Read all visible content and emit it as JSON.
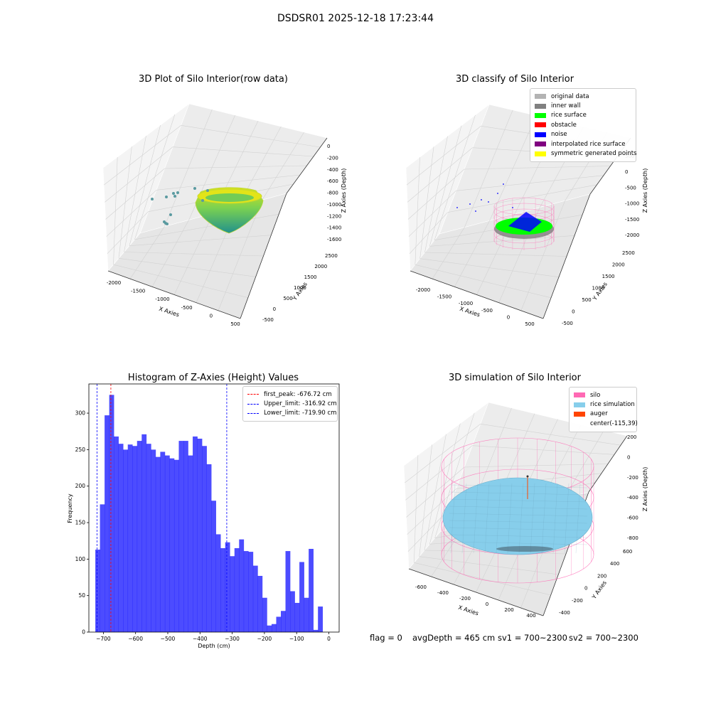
{
  "figure": {
    "suptitle": "DSDSR01 2025-12-18 17:23:44",
    "footer": {
      "flag": "flag = 0",
      "avg_depth": "avgDepth = 465 cm",
      "sv1": "sv1 = 700~2300",
      "sv2": "sv2 = 700~2300"
    }
  },
  "panels": {
    "raw": {
      "title": "3D Plot of Silo Interior(row data)",
      "x_label": "X Axies",
      "y_label": "Y Axies",
      "z_label": "Z Axies (Depth)",
      "x_ticks": [
        "-2000",
        "-1500",
        "-1000",
        "-500",
        "0",
        "500"
      ],
      "y_ticks": [
        "-500",
        "0",
        "500",
        "1000",
        "1500",
        "2000",
        "2500"
      ],
      "z_ticks": [
        "0",
        "-200",
        "-400",
        "-600",
        "-800",
        "-1000",
        "-1200",
        "-1400",
        "-1600"
      ]
    },
    "classify": {
      "title": "3D classify of Silo Interior",
      "x_label": "X Axies",
      "y_label": "Y Axies",
      "z_label": "Z Axies (Depth)",
      "x_ticks": [
        "-2000",
        "-1500",
        "-1000",
        "-500",
        "0",
        "500"
      ],
      "y_ticks": [
        "-500",
        "0",
        "500",
        "1000",
        "1500",
        "2000",
        "2500"
      ],
      "z_ticks": [
        "500",
        "0",
        "-500",
        "-1000",
        "-1500",
        "-2000"
      ],
      "legend": [
        {
          "label": "original data",
          "color": "#b3b3b3"
        },
        {
          "label": "inner wall",
          "color": "#808080"
        },
        {
          "label": "rice surface",
          "color": "#00ff00"
        },
        {
          "label": "obstacle",
          "color": "#ff0000"
        },
        {
          "label": "noise",
          "color": "#0000ff"
        },
        {
          "label": "interpolated rice surface",
          "color": "#800080"
        },
        {
          "label": "symmetric generated points",
          "color": "#ffff00"
        }
      ]
    },
    "simulation": {
      "title": "3D simulation of Silo Interior",
      "x_label": "X Axies",
      "y_label": "Y Axies",
      "z_label": "Z Axies (Depth)",
      "x_ticks": [
        "-600",
        "-400",
        "-200",
        "0",
        "200",
        "400"
      ],
      "y_ticks": [
        "-400",
        "-200",
        "0",
        "200",
        "400",
        "600"
      ],
      "z_ticks": [
        "200",
        "0",
        "-200",
        "-400",
        "-600",
        "-800"
      ],
      "legend": [
        {
          "label": "silo",
          "color": "#ff69b4"
        },
        {
          "label": "rice simulation",
          "color": "#87ceeb"
        },
        {
          "label": "auger",
          "color": "#ff4500"
        },
        {
          "label": "center(-115,39)",
          "color": ""
        }
      ]
    }
  },
  "chart_data": {
    "type": "bar",
    "title": "Histogram of Z-Axies (Height) Values",
    "xlabel": "Depth (cm)",
    "ylabel": "Frequency",
    "xlim": [
      -745,
      32
    ],
    "ylim": [
      0,
      340
    ],
    "x_ticks": [
      -700,
      -600,
      -500,
      -400,
      -300,
      -200,
      -100,
      0
    ],
    "y_ticks": [
      0,
      50,
      100,
      150,
      200,
      250,
      300
    ],
    "bar_color": "#0000ff",
    "bin_start": -725,
    "bin_width": 14.4,
    "values": [
      113,
      175,
      297,
      325,
      268,
      258,
      250,
      257,
      255,
      262,
      271,
      258,
      250,
      240,
      247,
      242,
      238,
      236,
      262,
      262,
      242,
      268,
      265,
      255,
      230,
      180,
      134,
      115,
      123,
      104,
      115,
      127,
      111,
      110,
      91,
      77,
      47,
      9,
      11,
      21,
      29,
      111,
      56,
      40,
      96,
      47,
      114,
      3,
      35
    ],
    "vlines": [
      {
        "label": "first_peak: -676.72 cm",
        "x": -676.72,
        "color": "#ff0000"
      },
      {
        "label": "Upper_limit: -316.92 cm",
        "x": -316.92,
        "color": "#0000ff"
      },
      {
        "label": "Lower_limit: -719.90 cm",
        "x": -719.9,
        "color": "#0000ff"
      }
    ],
    "legend_position": "upper right"
  }
}
